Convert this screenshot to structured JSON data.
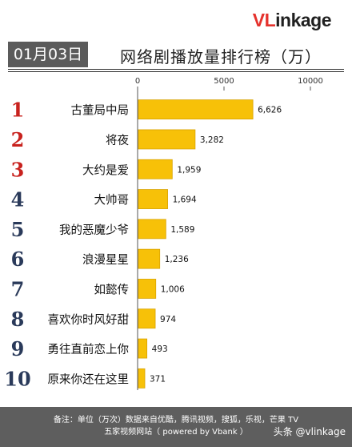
{
  "brand": {
    "logo_v": "V",
    "logo_l": "L",
    "logo_i": "i",
    "logo_rest": "nkage"
  },
  "date_badge": "01月03日",
  "title": "网络剧播放量排行榜（万）",
  "colors": {
    "bar": "#f7c108",
    "bar_edge": "#d9a300",
    "rank_red": "#c8221e",
    "rank_dark": "#2a3a5a"
  },
  "chart_data": {
    "type": "bar",
    "orientation": "horizontal",
    "title": "网络剧播放量排行榜（万）",
    "xlim": [
      0,
      10000
    ],
    "x_ticks": [
      0,
      5000,
      10000
    ],
    "ranks": [
      "1",
      "2",
      "3",
      "4",
      "5",
      "6",
      "7",
      "8",
      "9",
      "10"
    ],
    "categories": [
      "古董局中局",
      "将夜",
      "大约是爱",
      "大帅哥",
      "我的恶魔少爷",
      "浪漫星星",
      "如懿传",
      "喜欢你时风好甜",
      "勇往直前恋上你",
      "原来你还在这里"
    ],
    "values": [
      6626,
      3282,
      1959,
      1694,
      1589,
      1236,
      1006,
      974,
      493,
      371
    ],
    "value_labels": [
      "6,626",
      "3,282",
      "1,959",
      "1,694",
      "1,589",
      "1,236",
      "1,006",
      "974",
      "493",
      "371"
    ]
  },
  "footer": {
    "line1": "备注：单位（万次）数据来自优酷，腾讯视频，搜狐，乐视，芒果 TV",
    "line2": "五家视频网站（ powered by Vbank ）"
  },
  "watermark": "头条 @vlinkage"
}
